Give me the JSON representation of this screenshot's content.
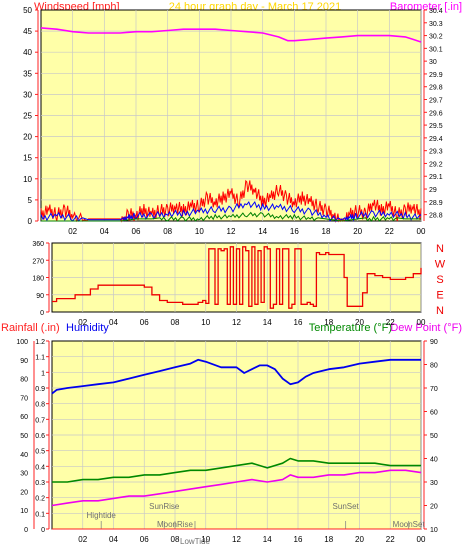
{
  "header": {
    "left_label": "Windspeed [mph]",
    "title": "24 hour graph day - March 17 2021",
    "right_label": "Barometer [.in]"
  },
  "colors": {
    "background": "#ffffff",
    "plot_bg": "#ffffa8",
    "grid": "#c8c8c8",
    "axis_red": "#ff2020",
    "wind_gust": "#ff0000",
    "wind_avg": "#0000ff",
    "wind_low": "#008000",
    "barometer": "#ff00ff",
    "direction": "#ee0000",
    "humidity": "#0000ee",
    "temperature": "#008800",
    "dewpoint": "#ee00ee",
    "title": "#ffd700",
    "event_text": "#707070"
  },
  "x_ticks": [
    "02",
    "04",
    "06",
    "08",
    "10",
    "12",
    "14",
    "16",
    "18",
    "20",
    "22",
    "00"
  ],
  "direction_labels": [
    "N",
    "W",
    "S",
    "E",
    "N"
  ],
  "bottom_labels": {
    "rain": "Rainfall (.in)",
    "humidity": "Humidity",
    "temperature": "Temperature (°F)",
    "dewpoint": "Dew Point (°F)"
  },
  "events": [
    {
      "label": "Hightide",
      "x": 3.2
    },
    {
      "label": "SunRise",
      "x": 7.3
    },
    {
      "label": "MoonRise",
      "x": 8.0
    },
    {
      "label": "LowTide",
      "x": 9.3
    },
    {
      "label": "SunSet",
      "x": 19.1
    },
    {
      "label": "MoonSet",
      "x": 23.2
    }
  ],
  "chart_data": [
    {
      "type": "line",
      "title": "24 hour graph day - March 17 2021",
      "ylabel": "Windspeed [mph]",
      "y2label": "Barometer [.in]",
      "x_range": [
        0,
        24
      ],
      "ylim": [
        0,
        50
      ],
      "y_ticks": [
        0,
        5,
        10,
        15,
        20,
        25,
        30,
        35,
        40,
        45,
        50
      ],
      "y2lim": [
        28.75,
        30.4
      ],
      "y2_ticks": [
        "28.8",
        "28.9",
        "29",
        "29.1",
        "29.2",
        "29.3",
        "29.4",
        "29.5",
        "29.6",
        "29.7",
        "29.8",
        "29.9",
        "30",
        "30.1",
        "30.2",
        "30.3",
        "30.4"
      ],
      "grid": true,
      "series": [
        {
          "name": "Barometer [.in]",
          "axis": "right",
          "x": [
            0,
            1,
            2,
            3,
            4,
            5,
            6,
            7,
            8,
            9,
            10,
            11,
            12,
            13,
            14,
            15,
            15.6,
            16,
            17,
            18,
            19,
            20,
            21,
            22,
            23,
            23.5,
            24
          ],
          "values": [
            30.26,
            30.25,
            30.23,
            30.22,
            30.22,
            30.22,
            30.23,
            30.23,
            30.24,
            30.25,
            30.25,
            30.25,
            30.24,
            30.23,
            30.22,
            30.19,
            30.16,
            30.16,
            30.17,
            30.18,
            30.19,
            30.2,
            30.2,
            30.2,
            30.19,
            30.17,
            30.15
          ]
        },
        {
          "name": "Wind gust",
          "axis": "left",
          "x": [
            0,
            0.5,
            1,
            1.5,
            2,
            3,
            4,
            5,
            5.5,
            6,
            6.5,
            7,
            7.5,
            8,
            8.5,
            9,
            9.5,
            10,
            10.5,
            11,
            11.5,
            12,
            12.5,
            13,
            13.5,
            14,
            14.5,
            15,
            15.5,
            16,
            16.5,
            17,
            17.5,
            18,
            18.5,
            19,
            19.5,
            20,
            20.5,
            21,
            21.5,
            22,
            22.5,
            23,
            23.5,
            24
          ],
          "values": [
            3,
            4,
            3,
            4,
            3,
            0.5,
            0.5,
            0.5,
            3,
            3,
            4,
            3,
            4,
            4,
            5,
            4,
            5,
            5,
            7,
            6,
            7,
            8,
            6,
            10,
            9,
            6,
            7,
            9,
            7,
            6,
            7,
            6,
            5,
            4,
            3,
            0.5,
            3,
            4,
            3,
            6,
            4,
            5,
            3,
            4,
            5,
            3
          ]
        },
        {
          "name": "Wind average",
          "axis": "left",
          "x": [
            0,
            1,
            2,
            3,
            4,
            5,
            5.5,
            6,
            7,
            8,
            9,
            10,
            11,
            12,
            13,
            14,
            15,
            16,
            17,
            18,
            19,
            19.5,
            20,
            21,
            22,
            23,
            24
          ],
          "values": [
            1.5,
            2,
            1.5,
            0.3,
            0.3,
            0.3,
            1.5,
            2,
            2,
            2.5,
            2.5,
            3,
            3.5,
            3.5,
            5,
            4,
            4,
            3.5,
            3,
            2,
            0.3,
            1.5,
            2,
            2.5,
            2.5,
            2,
            1.5
          ]
        },
        {
          "name": "Wind low",
          "axis": "left",
          "x": [
            0,
            1,
            2,
            3,
            5,
            6,
            7,
            8,
            9,
            10,
            11,
            12,
            13,
            14,
            15,
            16,
            17,
            18,
            19,
            20,
            21,
            22,
            23,
            24
          ],
          "values": [
            0,
            0,
            0,
            0,
            0,
            0.5,
            0.5,
            1,
            1,
            1,
            1.5,
            1.5,
            2,
            2,
            1.5,
            1.5,
            1,
            0.5,
            0,
            0.5,
            1,
            1,
            0.5,
            0.5
          ]
        }
      ]
    },
    {
      "type": "line",
      "title": "",
      "ylabel": "",
      "x_range": [
        0,
        24
      ],
      "ylim": [
        0,
        360
      ],
      "y_ticks": [
        0,
        90,
        180,
        270,
        360
      ],
      "right_labels": [
        "N",
        "W",
        "S",
        "E",
        "N"
      ],
      "grid": true,
      "series": [
        {
          "name": "",
          "x": [
            0,
            0.3,
            1.5,
            2.5,
            3,
            3.5,
            5,
            6,
            6.5,
            7,
            7.5,
            8,
            8.5,
            9,
            9.5,
            9.8,
            10,
            10.2,
            10.4,
            10.6,
            10.8,
            11,
            11.2,
            11.4,
            11.6,
            11.8,
            12,
            12.2,
            12.4,
            12.6,
            12.8,
            13,
            13.2,
            13.4,
            13.6,
            13.8,
            14,
            14.2,
            14.4,
            14.6,
            14.8,
            15,
            15.2,
            15.4,
            15.6,
            15.8,
            16,
            16.2,
            16.4,
            16.6,
            16.8,
            17,
            17.2,
            17.4,
            17.6,
            17.8,
            18,
            18.4,
            19,
            19.2,
            19.5,
            19.8,
            20.2,
            20.5,
            21,
            21.5,
            22,
            22.5,
            23,
            23.5,
            24
          ],
          "values": [
            55,
            70,
            90,
            120,
            140,
            140,
            140,
            130,
            90,
            60,
            50,
            50,
            40,
            40,
            50,
            60,
            45,
            330,
            330,
            40,
            330,
            320,
            330,
            40,
            340,
            40,
            330,
            40,
            340,
            320,
            30,
            340,
            40,
            320,
            50,
            340,
            330,
            20,
            40,
            330,
            40,
            330,
            330,
            20,
            40,
            330,
            330,
            40,
            40,
            50,
            40,
            30,
            310,
            300,
            300,
            310,
            300,
            300,
            180,
            30,
            30,
            30,
            100,
            200,
            190,
            180,
            170,
            170,
            180,
            200,
            230
          ]
        }
      ]
    },
    {
      "type": "line",
      "title": "",
      "ylabel": "Rainfall (.in)",
      "ylim": [
        0,
        1.2
      ],
      "y_ticks": [
        "0",
        "0.1",
        "0.2",
        "0.3",
        "0.4",
        "0.5",
        "0.6",
        "0.7",
        "0.8",
        "0.9",
        "1",
        "1.1",
        "1.2"
      ],
      "humidity_ticks": [
        0,
        10,
        20,
        30,
        40,
        50,
        60,
        70,
        80,
        90,
        100
      ],
      "y2label": "Temperature (°F) / Dew Point (°F)",
      "y2lim": [
        10,
        90
      ],
      "y2_ticks": [
        10,
        20,
        30,
        40,
        50,
        60,
        70,
        80,
        90
      ],
      "x_range": [
        0,
        24
      ],
      "grid": true,
      "series": [
        {
          "name": "Humidity",
          "axis": "humidity",
          "x": [
            0,
            0.3,
            1,
            2,
            3,
            4,
            5,
            6,
            7,
            8,
            9,
            9.5,
            10,
            11,
            12,
            12.5,
            13,
            13.5,
            14,
            14.5,
            15,
            15.5,
            16,
            16.5,
            17,
            18,
            19,
            20,
            21,
            22,
            23,
            24
          ],
          "values": [
            72,
            74,
            75,
            76,
            77,
            78,
            80,
            82,
            84,
            86,
            88,
            90,
            89,
            86,
            86,
            83,
            85,
            87,
            87,
            85,
            80,
            77,
            78,
            81,
            83,
            85,
            86,
            88,
            89,
            90,
            90,
            90
          ]
        },
        {
          "name": "Temperature (°F)",
          "axis": "temperature",
          "x": [
            0,
            1,
            2,
            3,
            4,
            5,
            6,
            7,
            8,
            9,
            10,
            11,
            12,
            13,
            14,
            15,
            15.5,
            16,
            17,
            18,
            19,
            20,
            21,
            22,
            23,
            24
          ],
          "values": [
            30,
            30,
            31,
            31,
            32,
            32,
            33,
            33,
            34,
            35,
            35,
            36,
            37,
            38,
            36,
            38,
            40,
            39,
            39,
            38,
            38,
            38,
            38,
            37,
            37,
            37
          ]
        },
        {
          "name": "Dew Point (°F)",
          "axis": "temperature",
          "x": [
            0,
            1,
            2,
            3,
            4,
            5,
            6,
            7,
            8,
            9,
            10,
            11,
            12,
            13,
            14,
            15,
            15.5,
            16,
            17,
            18,
            19,
            20,
            21,
            22,
            23,
            24
          ],
          "values": [
            20,
            21,
            22,
            22,
            23,
            24,
            24,
            25,
            26,
            27,
            28,
            29,
            30,
            31,
            30,
            31,
            33,
            32,
            32,
            33,
            33,
            34,
            34,
            35,
            35,
            34
          ]
        },
        {
          "name": "Rainfall (.in)",
          "axis": "left",
          "x": [
            0,
            24
          ],
          "values": [
            0,
            0
          ]
        }
      ]
    }
  ]
}
